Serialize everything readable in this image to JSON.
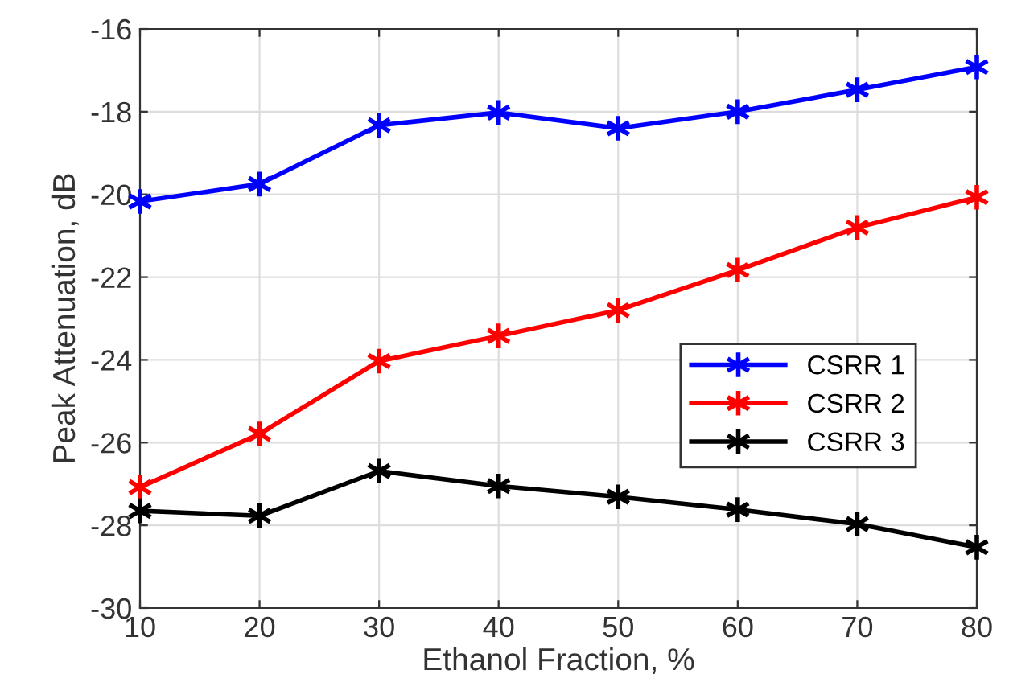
{
  "chart_data": {
    "type": "line",
    "xlabel": "Ethanol Fraction, %",
    "ylabel": "Peak Attenuation, dB",
    "x": [
      10,
      20,
      30,
      40,
      50,
      60,
      70,
      80
    ],
    "series": [
      {
        "name": "CSRR 1",
        "color": "#0000ff",
        "values": [
          -20.17,
          -19.75,
          -18.33,
          -18.02,
          -18.4,
          -18.0,
          -17.47,
          -16.92
        ]
      },
      {
        "name": "CSRR 2",
        "color": "#ff0000",
        "values": [
          -27.08,
          -25.79,
          -24.03,
          -23.42,
          -22.8,
          -21.83,
          -20.8,
          -20.07
        ]
      },
      {
        "name": "CSRR 3",
        "color": "#000000",
        "values": [
          -27.65,
          -27.77,
          -26.69,
          -27.05,
          -27.31,
          -27.62,
          -27.97,
          -28.53
        ]
      }
    ],
    "xlim": [
      10,
      80
    ],
    "xticks": [
      10,
      20,
      30,
      40,
      50,
      60,
      70,
      80
    ],
    "ylim": [
      -30,
      -16
    ],
    "yticks": [
      -30,
      -28,
      -26,
      -24,
      -22,
      -20,
      -18,
      -16
    ],
    "grid": true,
    "legend": "right",
    "marker": "cross",
    "line_style": "solid"
  }
}
